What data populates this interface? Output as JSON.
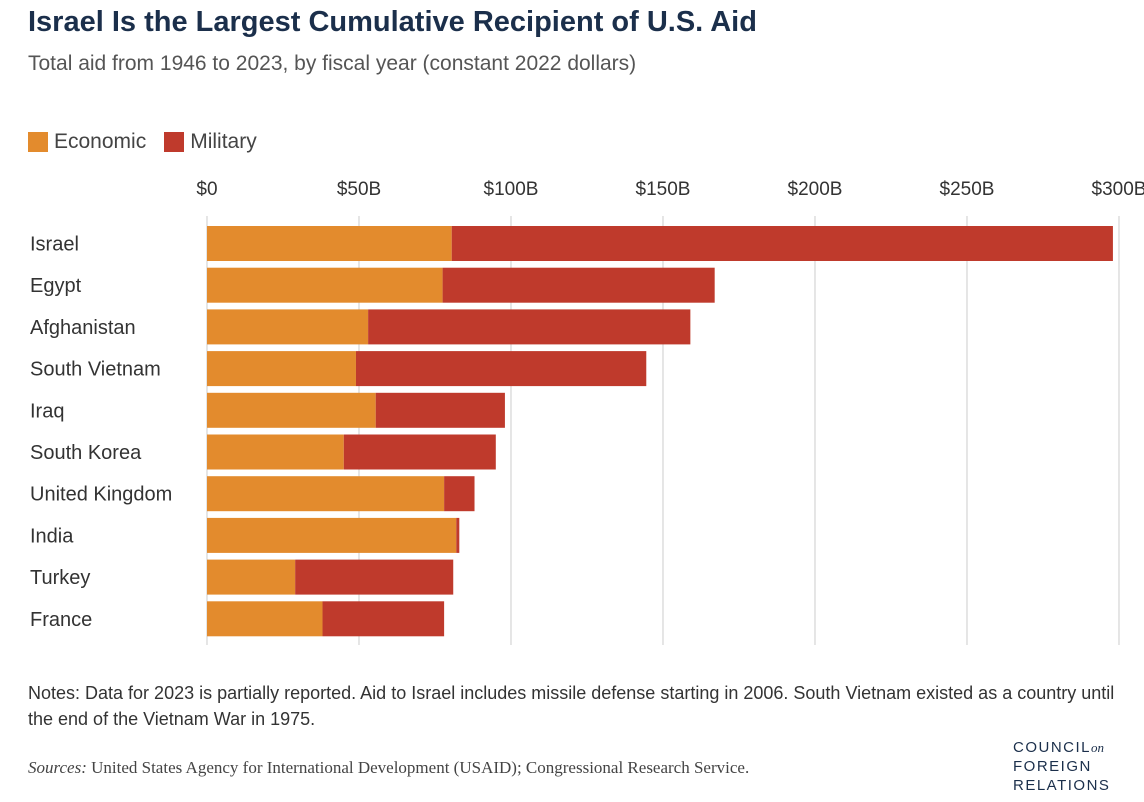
{
  "title": "Israel Is the Largest Cumulative Recipient of U.S. Aid",
  "subtitle": "Total aid from 1946 to 2023, by fiscal year (constant 2022 dollars)",
  "legend": {
    "economic": "Economic",
    "military": "Military"
  },
  "colors": {
    "economic": "#e38b2d",
    "military": "#bf3a2c",
    "grid": "#d4d4d4",
    "title": "#1b2f4b"
  },
  "chart_data": {
    "type": "bar",
    "orientation": "horizontal",
    "stacked": true,
    "categories": [
      "Israel",
      "Egypt",
      "Afghanistan",
      "South Vietnam",
      "Iraq",
      "South Korea",
      "United Kingdom",
      "India",
      "Turkey",
      "France"
    ],
    "series": [
      {
        "name": "Economic",
        "values": [
          80.5,
          77.5,
          53,
          49,
          55.5,
          45,
          78,
          82,
          29,
          38
        ]
      },
      {
        "name": "Military",
        "values": [
          217.5,
          89.5,
          106,
          95.5,
          42.5,
          50,
          10,
          1,
          52,
          40
        ]
      }
    ],
    "xlim": [
      0,
      300
    ],
    "x_ticks": [
      0,
      50,
      100,
      150,
      200,
      250,
      300
    ],
    "x_tick_labels": [
      "$0",
      "$50B",
      "$100B",
      "$150B",
      "$200B",
      "$250B",
      "$300B"
    ],
    "x_axis_position": "top",
    "grid": "vertical",
    "legend_position": "top-left",
    "xlabel": "",
    "ylabel": ""
  },
  "notes": "Notes: Data for 2023 is partially reported. Aid to Israel includes missile defense starting in 2006. South Vietnam existed as a country until the end of the Vietnam War in 1975.",
  "sources": {
    "label": "Sources:",
    "text": " United States Agency for International Development (USAID); Congressional Research Service."
  },
  "logo": {
    "line1": "COUNCIL",
    "on": "on",
    "line2": "FOREIGN",
    "line3": "RELATIONS"
  }
}
